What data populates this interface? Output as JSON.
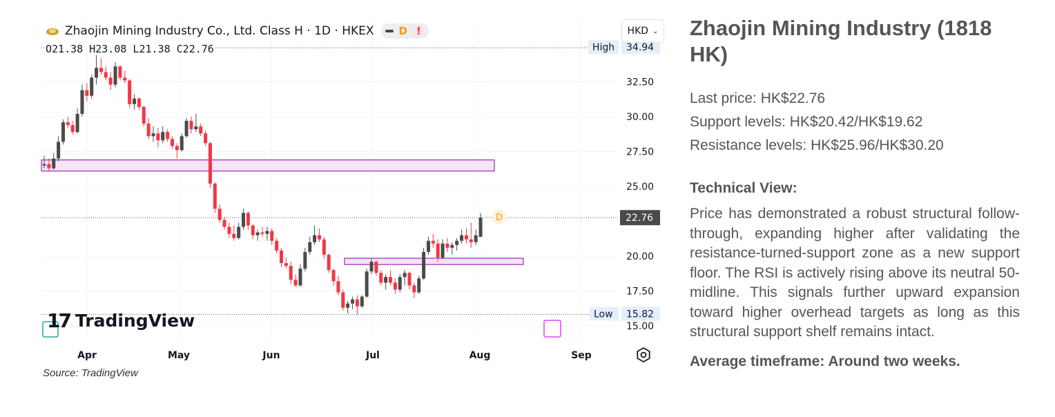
{
  "chart_header": {
    "title": "Zhaojin Mining Industry Co., Ltd. Class H · 1D · HKEX",
    "pill_d": "D",
    "pill_alert": "!",
    "ohlc": "O21.38 H23.08 L21.38 C22.76",
    "currency": "HKD"
  },
  "chart_data": {
    "type": "candlestick",
    "title": "Zhaojin Mining Industry Co., Ltd. Class H · 1D · HKEX",
    "yticks": [
      "32.50",
      "30.00",
      "27.50",
      "25.00",
      "20.00",
      "17.50",
      "15.00"
    ],
    "ylim": [
      15.0,
      34.94
    ],
    "xticks": [
      "Apr",
      "May",
      "Jun",
      "Jul",
      "Aug",
      "Sep"
    ],
    "high": {
      "label": "High",
      "value": "34.94"
    },
    "low": {
      "label": "Low",
      "value": "15.82"
    },
    "last": {
      "value": "22.76"
    },
    "zones": [
      {
        "name": "resistance-turned-support",
        "low": 26.1,
        "high": 26.9,
        "from": "Mar 20",
        "to": "Aug 4"
      },
      {
        "name": "support shelf",
        "low": 19.4,
        "high": 19.85,
        "from": "Jun 23",
        "to": "Aug 13"
      }
    ],
    "candles": [
      {
        "o": 26.5,
        "h": 27.2,
        "l": 26.3,
        "c": 26.6
      },
      {
        "o": 26.6,
        "h": 27.0,
        "l": 26.1,
        "c": 26.3
      },
      {
        "o": 26.3,
        "h": 27.4,
        "l": 26.2,
        "c": 27.0
      },
      {
        "o": 27.0,
        "h": 28.6,
        "l": 26.8,
        "c": 28.2
      },
      {
        "o": 28.2,
        "h": 29.8,
        "l": 28.0,
        "c": 29.6
      },
      {
        "o": 29.6,
        "h": 30.0,
        "l": 29.2,
        "c": 29.4
      },
      {
        "o": 29.4,
        "h": 29.7,
        "l": 28.7,
        "c": 28.9
      },
      {
        "o": 28.9,
        "h": 30.6,
        "l": 28.8,
        "c": 30.2
      },
      {
        "o": 30.2,
        "h": 32.3,
        "l": 30.0,
        "c": 31.9
      },
      {
        "o": 31.9,
        "h": 32.4,
        "l": 31.1,
        "c": 31.5
      },
      {
        "o": 31.5,
        "h": 33.0,
        "l": 31.3,
        "c": 32.8
      },
      {
        "o": 32.8,
        "h": 34.94,
        "l": 32.3,
        "c": 33.5
      },
      {
        "o": 33.5,
        "h": 34.2,
        "l": 33.0,
        "c": 33.2
      },
      {
        "o": 33.2,
        "h": 33.6,
        "l": 32.6,
        "c": 32.8
      },
      {
        "o": 32.8,
        "h": 33.2,
        "l": 31.9,
        "c": 32.3
      },
      {
        "o": 32.3,
        "h": 33.9,
        "l": 32.1,
        "c": 33.6
      },
      {
        "o": 33.6,
        "h": 33.7,
        "l": 32.6,
        "c": 32.8
      },
      {
        "o": 32.8,
        "h": 33.3,
        "l": 32.4,
        "c": 32.6
      },
      {
        "o": 32.6,
        "h": 32.7,
        "l": 30.6,
        "c": 30.9
      },
      {
        "o": 30.9,
        "h": 31.6,
        "l": 30.5,
        "c": 31.3
      },
      {
        "o": 31.3,
        "h": 31.4,
        "l": 30.5,
        "c": 30.7
      },
      {
        "o": 30.7,
        "h": 30.8,
        "l": 29.3,
        "c": 29.5
      },
      {
        "o": 29.5,
        "h": 29.9,
        "l": 28.4,
        "c": 28.6
      },
      {
        "o": 28.6,
        "h": 29.3,
        "l": 28.2,
        "c": 28.8
      },
      {
        "o": 28.8,
        "h": 29.2,
        "l": 27.8,
        "c": 28.3
      },
      {
        "o": 28.3,
        "h": 29.3,
        "l": 28.1,
        "c": 28.9
      },
      {
        "o": 28.9,
        "h": 29.1,
        "l": 28.2,
        "c": 28.4
      },
      {
        "o": 28.4,
        "h": 28.6,
        "l": 27.7,
        "c": 27.9
      },
      {
        "o": 27.9,
        "h": 28.1,
        "l": 27.0,
        "c": 27.6
      },
      {
        "o": 27.6,
        "h": 28.8,
        "l": 27.5,
        "c": 28.6
      },
      {
        "o": 28.6,
        "h": 29.9,
        "l": 28.5,
        "c": 29.7
      },
      {
        "o": 29.7,
        "h": 30.0,
        "l": 28.8,
        "c": 29.1
      },
      {
        "o": 29.1,
        "h": 30.2,
        "l": 28.9,
        "c": 29.3
      },
      {
        "o": 29.3,
        "h": 29.5,
        "l": 28.6,
        "c": 28.8
      },
      {
        "o": 28.8,
        "h": 29.0,
        "l": 27.9,
        "c": 28.1
      },
      {
        "o": 28.1,
        "h": 28.2,
        "l": 24.9,
        "c": 25.2
      },
      {
        "o": 25.2,
        "h": 25.3,
        "l": 23.1,
        "c": 23.4
      },
      {
        "o": 23.4,
        "h": 23.7,
        "l": 22.4,
        "c": 22.6
      },
      {
        "o": 22.6,
        "h": 22.8,
        "l": 21.9,
        "c": 22.1
      },
      {
        "o": 22.1,
        "h": 22.4,
        "l": 21.3,
        "c": 21.6
      },
      {
        "o": 21.6,
        "h": 22.2,
        "l": 21.1,
        "c": 21.3
      },
      {
        "o": 21.3,
        "h": 22.4,
        "l": 21.2,
        "c": 22.1
      },
      {
        "o": 22.1,
        "h": 23.4,
        "l": 21.9,
        "c": 23.1
      },
      {
        "o": 23.1,
        "h": 23.2,
        "l": 21.9,
        "c": 22.2
      },
      {
        "o": 22.2,
        "h": 22.3,
        "l": 21.2,
        "c": 21.5
      },
      {
        "o": 21.5,
        "h": 21.9,
        "l": 21.1,
        "c": 21.7
      },
      {
        "o": 21.7,
        "h": 22.1,
        "l": 21.4,
        "c": 21.6
      },
      {
        "o": 21.6,
        "h": 22.1,
        "l": 21.1,
        "c": 21.8
      },
      {
        "o": 21.8,
        "h": 22.0,
        "l": 20.8,
        "c": 21.1
      },
      {
        "o": 21.1,
        "h": 21.3,
        "l": 20.2,
        "c": 20.4
      },
      {
        "o": 20.4,
        "h": 20.6,
        "l": 19.2,
        "c": 19.5
      },
      {
        "o": 19.5,
        "h": 19.9,
        "l": 19.1,
        "c": 19.3
      },
      {
        "o": 19.3,
        "h": 19.6,
        "l": 18.0,
        "c": 18.3
      },
      {
        "o": 18.3,
        "h": 18.7,
        "l": 17.8,
        "c": 17.9
      },
      {
        "o": 17.9,
        "h": 19.4,
        "l": 17.8,
        "c": 19.1
      },
      {
        "o": 19.1,
        "h": 20.6,
        "l": 18.9,
        "c": 20.3
      },
      {
        "o": 20.3,
        "h": 21.4,
        "l": 20.1,
        "c": 21.0
      },
      {
        "o": 21.0,
        "h": 22.2,
        "l": 20.8,
        "c": 21.5
      },
      {
        "o": 21.5,
        "h": 22.0,
        "l": 21.0,
        "c": 21.2
      },
      {
        "o": 21.2,
        "h": 21.4,
        "l": 19.8,
        "c": 20.1
      },
      {
        "o": 20.1,
        "h": 20.2,
        "l": 18.8,
        "c": 19.0
      },
      {
        "o": 19.0,
        "h": 19.1,
        "l": 17.9,
        "c": 18.2
      },
      {
        "o": 18.2,
        "h": 18.6,
        "l": 17.2,
        "c": 17.4
      },
      {
        "o": 17.4,
        "h": 17.6,
        "l": 16.1,
        "c": 16.3
      },
      {
        "o": 16.3,
        "h": 16.8,
        "l": 15.9,
        "c": 16.6
      },
      {
        "o": 16.6,
        "h": 17.1,
        "l": 16.2,
        "c": 16.9
      },
      {
        "o": 16.9,
        "h": 17.2,
        "l": 15.82,
        "c": 16.4
      },
      {
        "o": 16.4,
        "h": 17.2,
        "l": 16.3,
        "c": 17.1
      },
      {
        "o": 17.1,
        "h": 19.1,
        "l": 17.0,
        "c": 18.9
      },
      {
        "o": 18.9,
        "h": 19.8,
        "l": 18.7,
        "c": 19.6
      },
      {
        "o": 19.6,
        "h": 19.7,
        "l": 18.6,
        "c": 18.8
      },
      {
        "o": 18.8,
        "h": 19.0,
        "l": 17.9,
        "c": 18.1
      },
      {
        "o": 18.1,
        "h": 18.7,
        "l": 17.6,
        "c": 18.5
      },
      {
        "o": 18.5,
        "h": 19.0,
        "l": 17.9,
        "c": 18.1
      },
      {
        "o": 18.1,
        "h": 18.4,
        "l": 17.3,
        "c": 17.6
      },
      {
        "o": 17.6,
        "h": 18.7,
        "l": 17.4,
        "c": 18.5
      },
      {
        "o": 18.5,
        "h": 19.0,
        "l": 17.9,
        "c": 18.8
      },
      {
        "o": 18.8,
        "h": 18.9,
        "l": 17.6,
        "c": 17.9
      },
      {
        "o": 17.9,
        "h": 18.1,
        "l": 17.0,
        "c": 17.4
      },
      {
        "o": 17.4,
        "h": 18.6,
        "l": 17.3,
        "c": 18.4
      },
      {
        "o": 18.4,
        "h": 20.6,
        "l": 18.3,
        "c": 20.3
      },
      {
        "o": 20.3,
        "h": 21.4,
        "l": 20.1,
        "c": 21.1
      },
      {
        "o": 21.1,
        "h": 21.6,
        "l": 20.6,
        "c": 20.9
      },
      {
        "o": 20.9,
        "h": 21.2,
        "l": 19.6,
        "c": 19.9
      },
      {
        "o": 19.9,
        "h": 21.2,
        "l": 19.8,
        "c": 20.9
      },
      {
        "o": 20.9,
        "h": 21.3,
        "l": 20.3,
        "c": 20.6
      },
      {
        "o": 20.6,
        "h": 21.0,
        "l": 20.1,
        "c": 20.8
      },
      {
        "o": 20.8,
        "h": 21.3,
        "l": 20.4,
        "c": 21.1
      },
      {
        "o": 21.1,
        "h": 21.9,
        "l": 20.9,
        "c": 21.5
      },
      {
        "o": 21.5,
        "h": 22.0,
        "l": 20.9,
        "c": 21.2
      },
      {
        "o": 21.2,
        "h": 22.4,
        "l": 20.6,
        "c": 21.0
      },
      {
        "o": 21.0,
        "h": 21.9,
        "l": 20.8,
        "c": 21.5
      },
      {
        "o": 21.38,
        "h": 23.08,
        "l": 21.38,
        "c": 22.76
      }
    ],
    "candle_start_x": 64,
    "candle_step": 6.87
  },
  "tv_logo": {
    "mark": "17",
    "text": "TradingView"
  },
  "source": "Source: TradingView",
  "panel": {
    "title": "Zhaojin Mining Industry (1818 HK)",
    "last_price": "Last price: HK$22.76",
    "support": "Support levels: HK$20.42/HK$19.62",
    "resistance": "Resistance levels: HK$25.96/HK$30.20",
    "tech_head": "Technical View:",
    "tech_body": "Price has demonstrated a robust structural follow-through, expanding higher after validating the resistance-turned-support zone as a new support floor. The RSI is actively rising above its neutral 50-midline. This signals further upward expansion toward higher overhead targets as long as this structural support shelf remains intact.",
    "timeframe": "Average timeframe: Around two weeks."
  },
  "colors": {
    "up": "#4a4a4a",
    "down": "#f23645",
    "zone_fill": "#f3e5f7",
    "zone_stroke": "#9c27b0",
    "grid": "#f0f3fa"
  }
}
